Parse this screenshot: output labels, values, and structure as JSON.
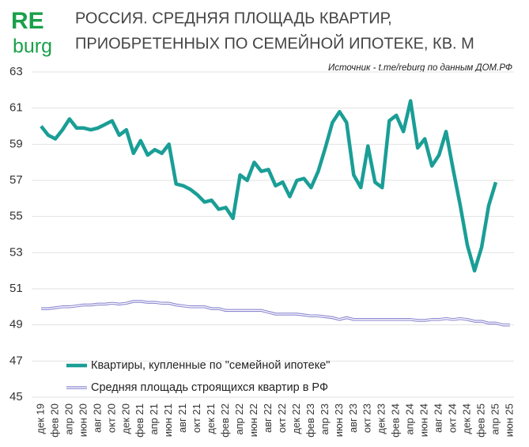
{
  "logo": {
    "top": "RE",
    "bottom": "burg"
  },
  "chart_data": {
    "type": "line",
    "title": [
      "РОССИЯ. СРЕДНЯЯ ПЛОЩАДЬ КВАРТИР,",
      "ПРИОБРЕТЕННЫХ ПО СЕМЕЙНОЙ ИПОТЕКЕ, КВ. М"
    ],
    "subtitle": "Источник - t.me/reburg по данным ДОМ.РФ",
    "categories": [
      "дек 19",
      null,
      "фев 20",
      null,
      "апр 20",
      null,
      "июн 20",
      null,
      "авг 20",
      null,
      "окт 20",
      null,
      "дек 20",
      null,
      "фев 21",
      null,
      "апр 21",
      null,
      "июн 21",
      null,
      "авг 21",
      null,
      "окт 21",
      null,
      "дек 21",
      null,
      "фев 22",
      null,
      "апр 22",
      null,
      "июн 22",
      null,
      "авг 22",
      null,
      "окт 22",
      null,
      "дек 22",
      null,
      "фев 23",
      null,
      "апр 23",
      null,
      "июн 23",
      null,
      "авг 23",
      null,
      "окт 23",
      null,
      "дек 23",
      null,
      "фев 24",
      null,
      "апр 24",
      null,
      "июн 24",
      null,
      "авг 24",
      null,
      "окт 24",
      null,
      "дек 24",
      null,
      "фев 25",
      null,
      "апр 25",
      null,
      "июн 25"
    ],
    "series": [
      {
        "name": "Квартиры, купленные по \"семейной ипотеке\"",
        "color": "#1a9e96",
        "values": [
          60.0,
          59.5,
          59.3,
          59.8,
          60.4,
          59.9,
          59.9,
          59.8,
          59.9,
          60.1,
          60.3,
          59.5,
          59.8,
          58.5,
          59.2,
          58.4,
          58.7,
          58.5,
          59.0,
          56.8,
          56.7,
          56.5,
          56.2,
          55.8,
          55.9,
          55.4,
          55.5,
          54.9,
          57.3,
          57.0,
          58.0,
          57.5,
          57.6,
          56.7,
          56.9,
          56.1,
          57.0,
          57.1,
          56.6,
          57.5,
          58.8,
          60.2,
          60.8,
          60.2,
          57.3,
          56.6,
          58.9,
          56.9,
          56.6,
          60.3,
          60.6,
          59.7,
          61.4,
          58.8,
          59.3,
          57.8,
          58.4,
          59.7,
          57.6,
          55.6,
          53.4,
          52.0,
          53.3,
          55.6,
          56.9,
          null,
          null
        ]
      },
      {
        "name": "Средняя площадь строящихся квартир в РФ",
        "color": "#8a86d0",
        "values": [
          49.9,
          49.9,
          49.95,
          50.0,
          50.0,
          50.05,
          50.1,
          50.1,
          50.15,
          50.15,
          50.2,
          50.15,
          50.2,
          50.3,
          50.3,
          50.25,
          50.25,
          50.2,
          50.2,
          50.1,
          50.05,
          50.0,
          50.0,
          50.0,
          49.9,
          49.9,
          49.8,
          49.8,
          49.8,
          49.8,
          49.8,
          49.8,
          49.7,
          49.6,
          49.6,
          49.6,
          49.6,
          49.55,
          49.5,
          49.5,
          49.45,
          49.4,
          49.3,
          49.4,
          49.3,
          49.3,
          49.3,
          49.3,
          49.3,
          49.3,
          49.3,
          49.3,
          49.3,
          49.25,
          49.25,
          49.3,
          49.3,
          49.35,
          49.3,
          49.35,
          49.3,
          49.2,
          49.2,
          49.1,
          49.1,
          49.0,
          49.0
        ]
      }
    ],
    "ylim": [
      45,
      63
    ],
    "yticks": [
      45,
      47,
      49,
      51,
      53,
      55,
      57,
      59,
      61,
      63
    ],
    "grid": true
  }
}
